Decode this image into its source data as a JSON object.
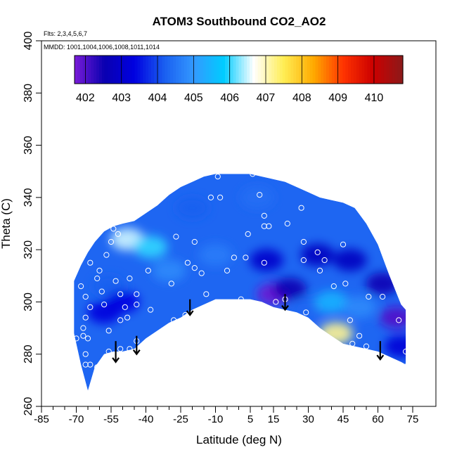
{
  "chart_data": {
    "type": "heatmap",
    "title": "ATOM3 Southbound CO2_AO2",
    "flights_label": "Flts: 2,3,4,5,6,7",
    "dates_label": "MMDD: 1001,1004,1006,1008,1011,1014",
    "xlabel": "Latitude (deg N)",
    "ylabel": "Theta (C)",
    "xlim": [
      -85,
      85
    ],
    "ylim": [
      260,
      400
    ],
    "x_ticks": [
      -85,
      -70,
      -55,
      -40,
      -25,
      -10,
      5,
      15,
      30,
      45,
      60,
      75
    ],
    "x_tick_labels": [
      "-85",
      "-70",
      "-55",
      "-40",
      "-25",
      "-10",
      "5",
      "15",
      "30",
      "45",
      "60",
      "75"
    ],
    "y_ticks": [
      260,
      280,
      300,
      320,
      340,
      360,
      380,
      400
    ],
    "y_tick_labels": [
      "260",
      "280",
      "300",
      "320",
      "340",
      "360",
      "380",
      "400"
    ],
    "colorbar": {
      "min": 401.7,
      "max": 410.8,
      "ticks": [
        402,
        403,
        404,
        405,
        406,
        407,
        408,
        409,
        410
      ],
      "tick_labels": [
        "402",
        "403",
        "404",
        "405",
        "406",
        "407",
        "408",
        "409",
        "410"
      ],
      "colors": [
        "#7a1cd8",
        "#0a00b0",
        "#0000e0",
        "#1a5ef0",
        "#3399ff",
        "#00ccff",
        "#ffffff",
        "#ffee55",
        "#ffaa00",
        "#ff3300",
        "#cc0000",
        "#8b1a1a"
      ]
    },
    "coverage": {
      "lat": [
        -71,
        -68,
        -65,
        -62,
        -58,
        -54,
        -50,
        -45,
        -40,
        -35,
        -30,
        -25,
        -20,
        -15,
        -10,
        -5,
        0,
        5,
        10,
        15,
        20,
        25,
        30,
        35,
        40,
        45,
        50,
        55,
        60,
        65,
        70,
        72
      ],
      "theta_bottom": [
        288,
        276,
        266,
        275,
        280,
        281,
        281,
        282,
        286,
        289,
        292,
        294,
        297,
        299,
        301,
        301,
        301,
        301,
        300,
        298,
        297,
        296,
        294,
        290,
        287,
        284,
        283,
        282,
        281,
        279,
        277,
        276
      ],
      "theta_top": [
        308,
        314,
        319,
        323,
        327,
        329,
        330,
        331,
        334,
        337,
        341,
        344,
        346,
        348,
        349,
        349,
        349,
        349,
        348,
        347,
        346,
        344,
        342,
        340,
        339,
        338,
        336,
        330,
        322,
        310,
        299,
        297
      ]
    },
    "field_anomalies": [
      {
        "lat": -48,
        "theta": 324,
        "co2": 406.5
      },
      {
        "lat": -38,
        "theta": 321,
        "co2": 406.0
      },
      {
        "lat": -56,
        "theta": 306,
        "co2": 404.2
      },
      {
        "lat": -50,
        "theta": 300,
        "co2": 403.4
      },
      {
        "lat": -58,
        "theta": 296,
        "co2": 403.3
      },
      {
        "lat": -20,
        "theta": 336,
        "co2": 404.2
      },
      {
        "lat": -30,
        "theta": 312,
        "co2": 404.8
      },
      {
        "lat": -10,
        "theta": 318,
        "co2": 404.6
      },
      {
        "lat": 8,
        "theta": 340,
        "co2": 404.4
      },
      {
        "lat": 12,
        "theta": 316,
        "co2": 403.0
      },
      {
        "lat": 15,
        "theta": 303,
        "co2": 401.8
      },
      {
        "lat": 22,
        "theta": 305,
        "co2": 402.5
      },
      {
        "lat": 34,
        "theta": 318,
        "co2": 402.8
      },
      {
        "lat": 30,
        "theta": 297,
        "co2": 404.3
      },
      {
        "lat": 42,
        "theta": 288,
        "co2": 407.2
      },
      {
        "lat": 40,
        "theta": 300,
        "co2": 405.4
      },
      {
        "lat": 48,
        "theta": 316,
        "co2": 402.8
      },
      {
        "lat": 52,
        "theta": 298,
        "co2": 404.8
      },
      {
        "lat": 62,
        "theta": 307,
        "co2": 402.6
      },
      {
        "lat": 68,
        "theta": 294,
        "co2": 402.0
      },
      {
        "lat": 70,
        "theta": 283,
        "co2": 403.2
      }
    ],
    "observation_points": [
      [
        -72,
        310
      ],
      [
        -68,
        306
      ],
      [
        -67,
        321
      ],
      [
        -66,
        326
      ],
      [
        -64,
        315
      ],
      [
        -66,
        302
      ],
      [
        -64,
        298
      ],
      [
        -66,
        294
      ],
      [
        -67,
        290
      ],
      [
        -67,
        287
      ],
      [
        -70,
        286
      ],
      [
        -65,
        286
      ],
      [
        -66,
        280
      ],
      [
        -66,
        276
      ],
      [
        -64,
        276
      ],
      [
        -61,
        275
      ],
      [
        -58,
        278
      ],
      [
        -56,
        281
      ],
      [
        -54,
        279
      ],
      [
        -51,
        282
      ],
      [
        -50,
        278
      ],
      [
        -47,
        282
      ],
      [
        -44,
        285
      ],
      [
        -56,
        289
      ],
      [
        -58,
        299
      ],
      [
        -59,
        304
      ],
      [
        -61,
        309
      ],
      [
        -60,
        312
      ],
      [
        -57,
        318
      ],
      [
        -55,
        323
      ],
      [
        -54,
        328
      ],
      [
        -52,
        326
      ],
      [
        -53,
        308
      ],
      [
        -51,
        303
      ],
      [
        -49,
        298
      ],
      [
        -51,
        293
      ],
      [
        -48,
        294
      ],
      [
        -47,
        309
      ],
      [
        -44,
        303
      ],
      [
        -44,
        299
      ],
      [
        -39,
        312
      ],
      [
        -38,
        297
      ],
      [
        -29,
        307
      ],
      [
        -28,
        293
      ],
      [
        -23,
        295
      ],
      [
        -27,
        325
      ],
      [
        -22,
        315
      ],
      [
        -19,
        323
      ],
      [
        -19,
        313
      ],
      [
        -16,
        311
      ],
      [
        -14,
        303
      ],
      [
        -12,
        340
      ],
      [
        -8,
        340
      ],
      [
        -9,
        348
      ],
      [
        -7,
        299
      ],
      [
        -5,
        312
      ],
      [
        -2,
        317
      ],
      [
        1,
        301
      ],
      [
        3,
        317
      ],
      [
        4,
        326
      ],
      [
        6,
        349
      ],
      [
        9,
        341
      ],
      [
        11,
        333
      ],
      [
        11,
        329
      ],
      [
        11,
        315
      ],
      [
        13,
        329
      ],
      [
        16,
        300
      ],
      [
        20,
        301
      ],
      [
        21,
        330
      ],
      [
        24,
        347
      ],
      [
        27,
        336
      ],
      [
        28,
        323
      ],
      [
        28,
        316
      ],
      [
        29,
        296
      ],
      [
        34,
        319
      ],
      [
        35,
        312
      ],
      [
        37,
        316
      ],
      [
        41,
        306
      ],
      [
        45,
        322
      ],
      [
        46,
        307
      ],
      [
        48,
        293
      ],
      [
        49,
        284
      ],
      [
        52,
        287
      ],
      [
        55,
        283
      ],
      [
        56,
        302
      ],
      [
        58,
        331
      ],
      [
        62,
        302
      ],
      [
        69,
        293
      ],
      [
        72,
        281
      ],
      [
        73,
        276
      ]
    ],
    "flight_arrows": [
      {
        "lat": -53,
        "theta_top": 285,
        "theta_tip": 277
      },
      {
        "lat": -44,
        "theta_top": 287,
        "theta_tip": 280
      },
      {
        "lat": -21,
        "theta_top": 301,
        "theta_tip": 295
      },
      {
        "lat": 20,
        "theta_top": 303,
        "theta_tip": 297
      },
      {
        "lat": 61,
        "theta_top": 285,
        "theta_tip": 278
      }
    ]
  }
}
